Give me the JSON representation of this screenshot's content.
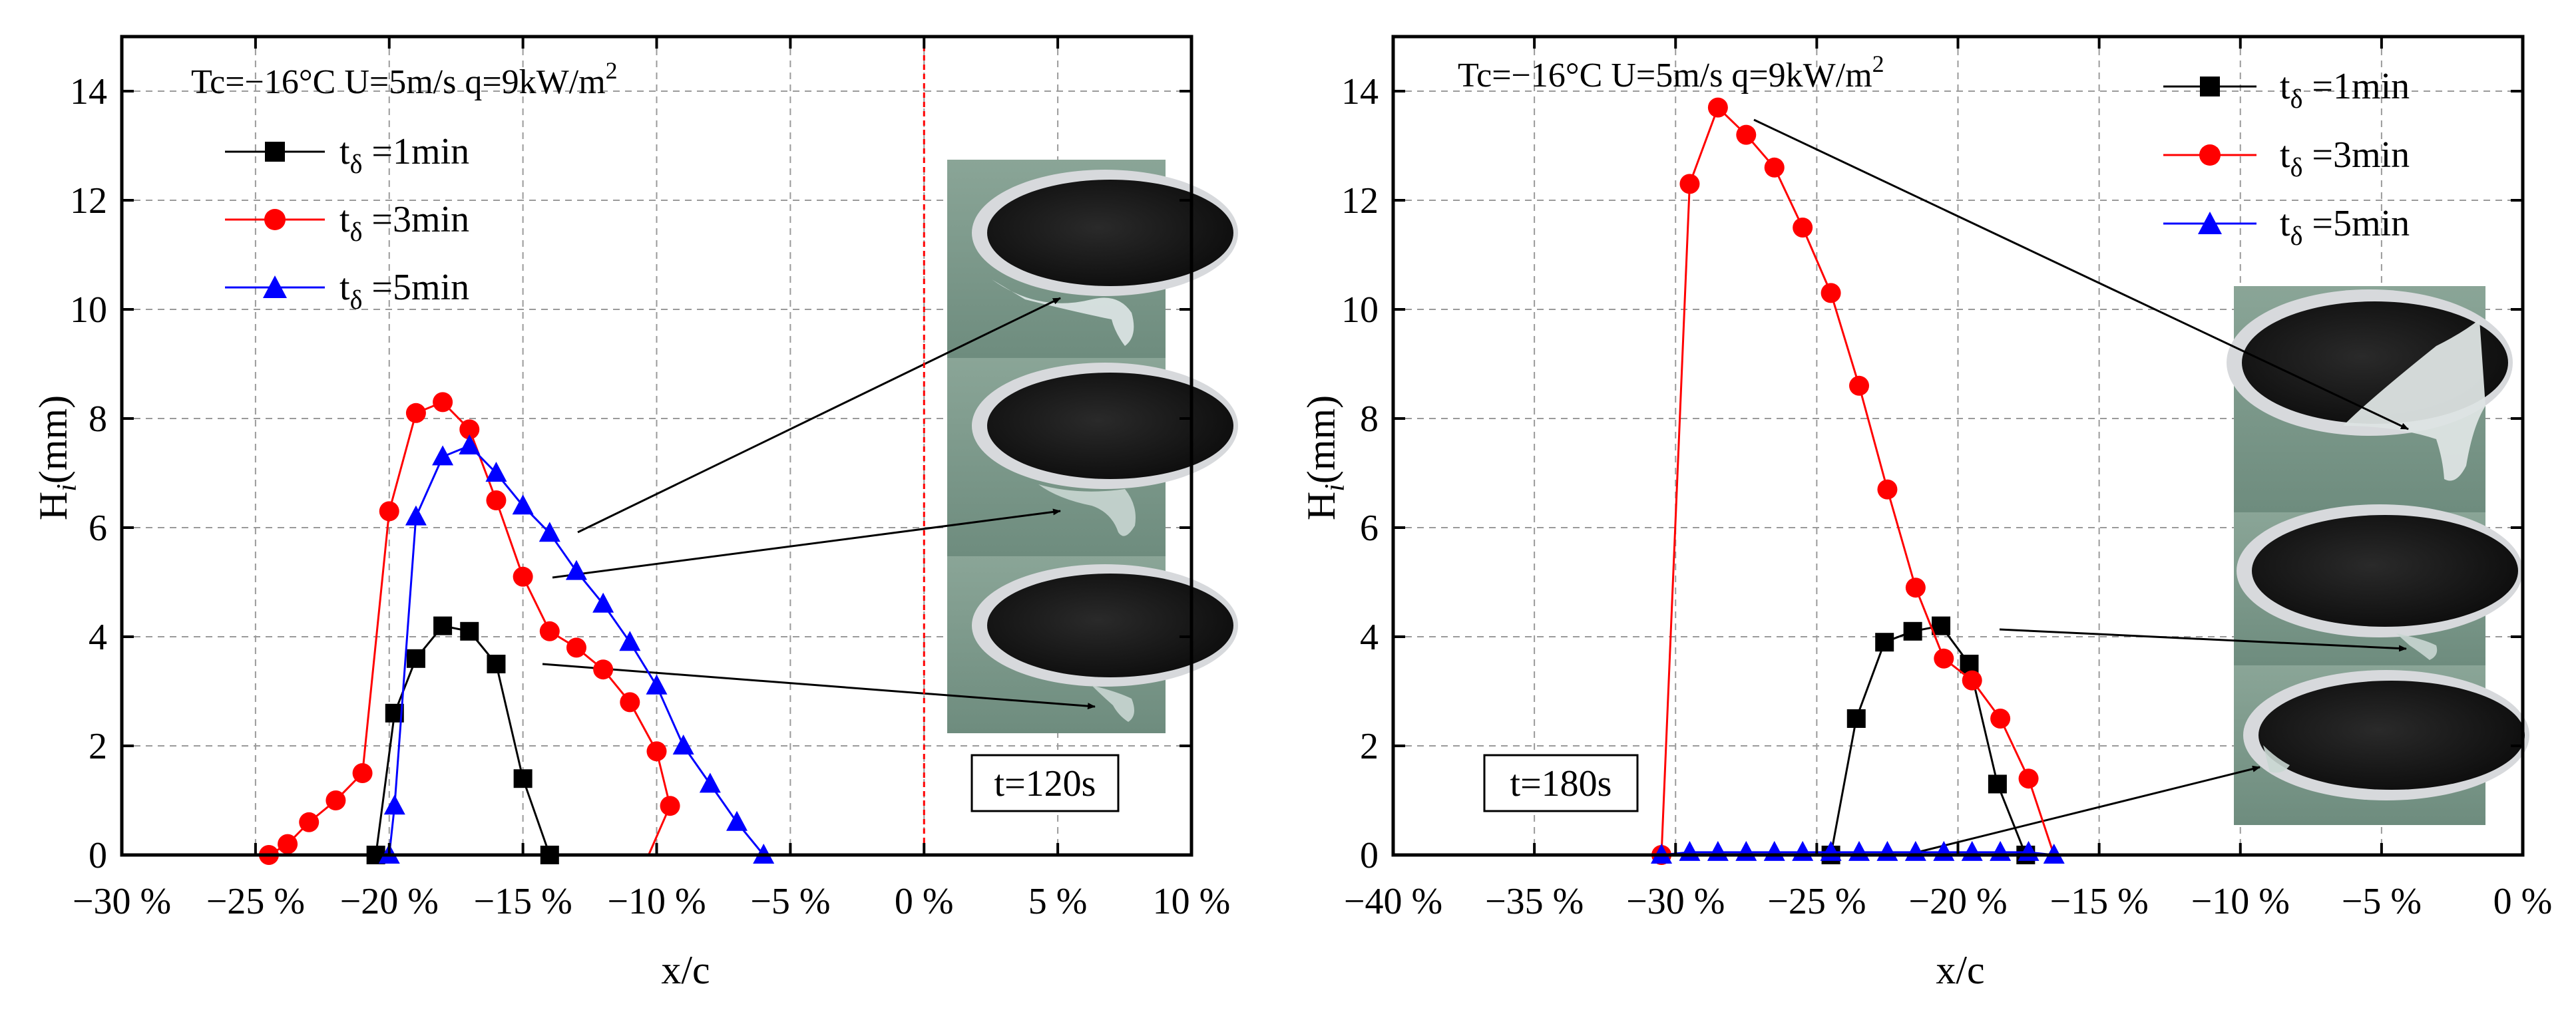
{
  "chart_data": [
    {
      "type": "line",
      "panel": "left",
      "conditions": "Tc=−16°C U=5m/s q=9kW/m",
      "conditions_sup": "2",
      "xlabel": "x/c",
      "ylabel_main": "H",
      "ylabel_sub": "i",
      "ylabel_rest": "(mm)",
      "xlim": [
        -30,
        10
      ],
      "ylim": [
        0,
        15
      ],
      "xticks": [
        -30,
        -25,
        -20,
        -15,
        -10,
        -5,
        0,
        5,
        10
      ],
      "xtick_labels": [
        "−30 %",
        "−25 %",
        "−20 %",
        "−15 %",
        "−10 %",
        "−5 %",
        "0 %",
        "5 %",
        "10 %"
      ],
      "yticks": [
        0,
        2,
        4,
        6,
        8,
        10,
        12,
        14
      ],
      "ytick_labels": [
        "0",
        "2",
        "4",
        "6",
        "8",
        "10",
        "12",
        "14"
      ],
      "grid": true,
      "legend_position": "top-left",
      "time_label": "t=120s",
      "reference_line_x": 0,
      "series": [
        {
          "name_main": "t",
          "name_sub": "δ",
          "name_rest": " =1min",
          "color": "#000000",
          "marker": "square",
          "x": [
            -20.5,
            -19.8,
            -19.0,
            -18.0,
            -17.0,
            -16.0,
            -15.0,
            -14.0
          ],
          "y": [
            0.0,
            2.6,
            3.6,
            4.2,
            4.1,
            3.5,
            1.4,
            0.0
          ]
        },
        {
          "name_main": "t",
          "name_sub": "δ",
          "name_rest": " =3min",
          "color": "#ff0000",
          "marker": "circle",
          "x": [
            -24.5,
            -23.8,
            -23.0,
            -22.0,
            -21.0,
            -20.0,
            -19.0,
            -18.0,
            -17.0,
            -16.0,
            -15.0,
            -14.0,
            -13.0,
            -12.0,
            -11.0,
            -10.0,
            -9.5
          ],
          "y": [
            0.0,
            0.2,
            0.6,
            1.0,
            1.5,
            6.3,
            8.1,
            8.3,
            7.8,
            6.5,
            5.1,
            4.1,
            3.8,
            3.4,
            2.8,
            1.9,
            0.9
          ],
          "tail_x": [
            -10.3,
            -9.5
          ],
          "tail_y": [
            0.0,
            0.9
          ]
        },
        {
          "name_main": "t",
          "name_sub": "δ",
          "name_rest": " =5min",
          "color": "#0000ff",
          "marker": "triangle",
          "x": [
            -20.0,
            -19.8,
            -19.0,
            -18.0,
            -17.0,
            -16.0,
            -15.0,
            -14.0,
            -13.0,
            -12.0,
            -11.0,
            -10.0,
            -9.0,
            -8.0,
            -7.0,
            -6.0
          ],
          "y": [
            0.0,
            0.9,
            6.2,
            7.3,
            7.5,
            7.0,
            6.4,
            5.9,
            5.2,
            4.6,
            3.9,
            3.1,
            2.0,
            1.3,
            0.6,
            0.0
          ]
        }
      ]
    },
    {
      "type": "line",
      "panel": "right",
      "conditions": "Tc=−16°C U=5m/s q=9kW/m",
      "conditions_sup": "2",
      "xlabel": "x/c",
      "ylabel_main": "H",
      "ylabel_sub": "i",
      "ylabel_rest": "(mm)",
      "xlim": [
        -40,
        0
      ],
      "ylim": [
        0,
        15
      ],
      "xticks": [
        -40,
        -35,
        -30,
        -25,
        -20,
        -15,
        -10,
        -5,
        0
      ],
      "xtick_labels": [
        "−40 %",
        "−35 %",
        "−30 %",
        "−25 %",
        "−20 %",
        "−15 %",
        "−10 %",
        "−5 %",
        "0 %"
      ],
      "yticks": [
        0,
        2,
        4,
        6,
        8,
        10,
        12,
        14
      ],
      "ytick_labels": [
        "0",
        "2",
        "4",
        "6",
        "8",
        "10",
        "12",
        "14"
      ],
      "grid": true,
      "legend_position": "top-right",
      "time_label": "t=180s",
      "series": [
        {
          "name_main": "t",
          "name_sub": "δ",
          "name_rest": " =1min",
          "color": "#000000",
          "marker": "square",
          "x": [
            -24.5,
            -23.6,
            -22.6,
            -21.6,
            -20.6,
            -19.6,
            -18.6,
            -17.6
          ],
          "y": [
            0.0,
            2.5,
            3.9,
            4.1,
            4.2,
            3.5,
            1.3,
            0.0
          ]
        },
        {
          "name_main": "t",
          "name_sub": "δ",
          "name_rest": " =3min",
          "color": "#ff0000",
          "marker": "circle",
          "x": [
            -30.5,
            -29.5,
            -28.5,
            -27.5,
            -26.5,
            -25.5,
            -24.5,
            -23.5,
            -22.5,
            -21.5,
            -20.5,
            -19.5,
            -18.5,
            -17.5
          ],
          "y": [
            0.0,
            12.3,
            13.7,
            13.2,
            12.6,
            11.5,
            10.3,
            8.6,
            6.7,
            4.9,
            3.6,
            3.2,
            2.5,
            1.4
          ],
          "tail_x": [
            -17.5,
            -16.6
          ],
          "tail_y": [
            1.4,
            0.0
          ]
        },
        {
          "name_main": "t",
          "name_sub": "δ",
          "name_rest": " =5min",
          "color": "#0000ff",
          "marker": "triangle",
          "x": [
            -30.5,
            -29.5,
            -28.5,
            -27.5,
            -26.5,
            -25.5,
            -24.5,
            -23.5,
            -22.5,
            -21.5,
            -20.5,
            -19.5,
            -18.5,
            -17.5,
            -16.6
          ],
          "y": [
            0.0,
            0.05,
            0.05,
            0.05,
            0.05,
            0.05,
            0.05,
            0.05,
            0.05,
            0.05,
            0.05,
            0.05,
            0.05,
            0.05,
            0.0
          ]
        }
      ]
    }
  ]
}
